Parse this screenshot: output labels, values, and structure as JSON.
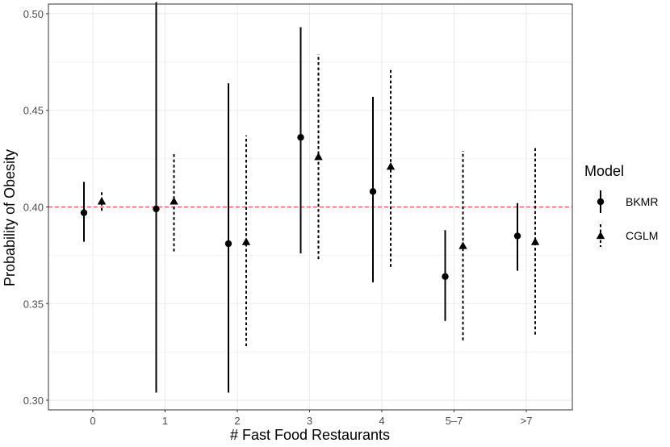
{
  "chart_data": {
    "type": "scatter",
    "title": "",
    "xlabel": "# Fast Food Restaurants",
    "ylabel": "Probability of Obesity",
    "categories": [
      "0",
      "1",
      "2",
      "3",
      "4",
      "5–7",
      ">7"
    ],
    "ylim": [
      0.295,
      0.505
    ],
    "yticks": [
      0.3,
      0.35,
      0.4,
      0.45,
      0.5
    ],
    "ytick_labels": [
      "0.30",
      "0.35",
      "0.40",
      "0.45",
      "0.50"
    ],
    "grid": true,
    "reference_line": {
      "y": 0.4,
      "color": "#e8485f",
      "style": "dashed"
    },
    "legend": {
      "title": "Model",
      "placement": "right"
    },
    "series": [
      {
        "name": "BKMR",
        "marker": "circle",
        "line_style": "solid",
        "estimate": [
          0.397,
          0.399,
          0.381,
          0.436,
          0.408,
          0.364,
          0.385
        ],
        "lower": [
          0.382,
          0.304,
          0.304,
          0.376,
          0.361,
          0.341,
          0.367
        ],
        "upper": [
          0.413,
          0.506,
          0.464,
          0.493,
          0.457,
          0.388,
          0.402
        ]
      },
      {
        "name": "CGLM",
        "marker": "triangle",
        "line_style": "dashed",
        "estimate": [
          0.403,
          0.403,
          0.382,
          0.426,
          0.421,
          0.38,
          0.382
        ],
        "lower": [
          0.398,
          0.377,
          0.328,
          0.373,
          0.369,
          0.331,
          0.334
        ],
        "upper": [
          0.408,
          0.428,
          0.437,
          0.479,
          0.472,
          0.429,
          0.431
        ]
      }
    ],
    "colors": {
      "series": "#000000",
      "grid": "#ebebeb",
      "panel_border": "#333333",
      "axis_text": "#4d4d4d"
    }
  }
}
